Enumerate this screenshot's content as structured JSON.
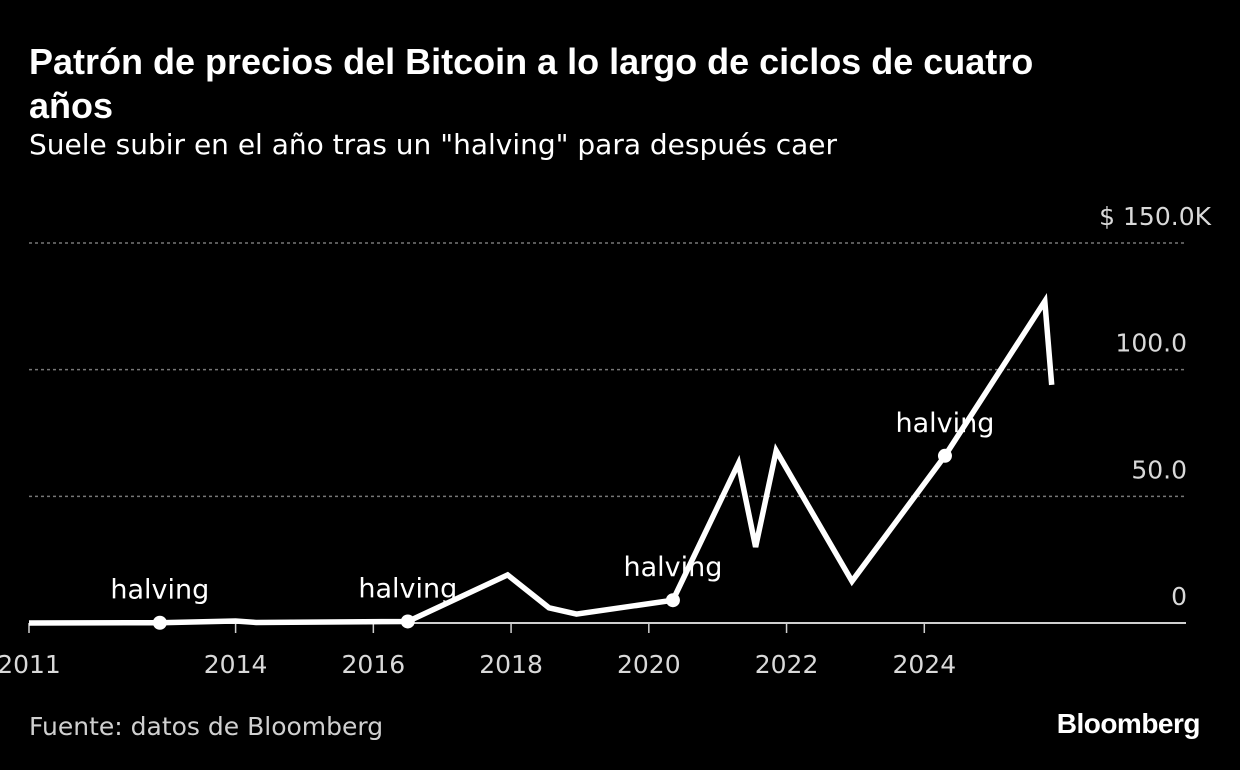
{
  "header": {
    "title": "Patrón de precios del Bitcoin a lo largo de ciclos de cuatro años",
    "subtitle": "Suele subir en el año tras un \"halving\" para después caer"
  },
  "footer": {
    "source": "Fuente: datos de Bloomberg",
    "brand": "Bloomberg"
  },
  "chart_data": {
    "type": "line",
    "title": "Patrón de precios del Bitcoin a lo largo de ciclos de cuatro años",
    "subtitle": "Suele subir en el año tras un \"halving\" para después caer",
    "xlabel": "",
    "ylabel": "",
    "xlim": [
      2011.0,
      2027.8
    ],
    "ylim": [
      0,
      150
    ],
    "x_ticks": [
      {
        "value": 2011.0,
        "label": "2011"
      },
      {
        "value": 2014.0,
        "label": "2014"
      },
      {
        "value": 2016.0,
        "label": "2016"
      },
      {
        "value": 2018.0,
        "label": "2018"
      },
      {
        "value": 2020.0,
        "label": "2020"
      },
      {
        "value": 2022.0,
        "label": "2022"
      },
      {
        "value": 2024.0,
        "label": "2024"
      }
    ],
    "y_ticks": [
      {
        "value": 0,
        "label": "0"
      },
      {
        "value": 50,
        "label": "50.0"
      },
      {
        "value": 100,
        "label": "100.0"
      },
      {
        "value": 150,
        "label": "$ 150.0K"
      }
    ],
    "grid": true,
    "line_color": "#ffffff",
    "grid_color": "#777777",
    "series": [
      {
        "values": [
          {
            "x": 2011.0,
            "y": 0
          },
          {
            "x": 2012.9,
            "y": 0.1
          },
          {
            "x": 2014.0,
            "y": 0.8
          },
          {
            "x": 2014.3,
            "y": 0.2
          },
          {
            "x": 2016.5,
            "y": 0.6
          },
          {
            "x": 2017.95,
            "y": 19
          },
          {
            "x": 2018.55,
            "y": 6
          },
          {
            "x": 2018.95,
            "y": 3.5
          },
          {
            "x": 2020.35,
            "y": 9
          },
          {
            "x": 2021.3,
            "y": 63
          },
          {
            "x": 2021.55,
            "y": 30
          },
          {
            "x": 2021.85,
            "y": 68
          },
          {
            "x": 2022.95,
            "y": 16.5
          },
          {
            "x": 2024.3,
            "y": 66
          },
          {
            "x": 2025.75,
            "y": 127
          },
          {
            "x": 2025.85,
            "y": 94
          }
        ]
      }
    ],
    "annotations": [
      {
        "text": "halving",
        "x": 2012.9,
        "y": 0.1
      },
      {
        "text": "halving",
        "x": 2016.5,
        "y": 0.6
      },
      {
        "text": "halving",
        "x": 2020.35,
        "y": 9
      },
      {
        "text": "halving",
        "x": 2024.3,
        "y": 66
      }
    ]
  }
}
